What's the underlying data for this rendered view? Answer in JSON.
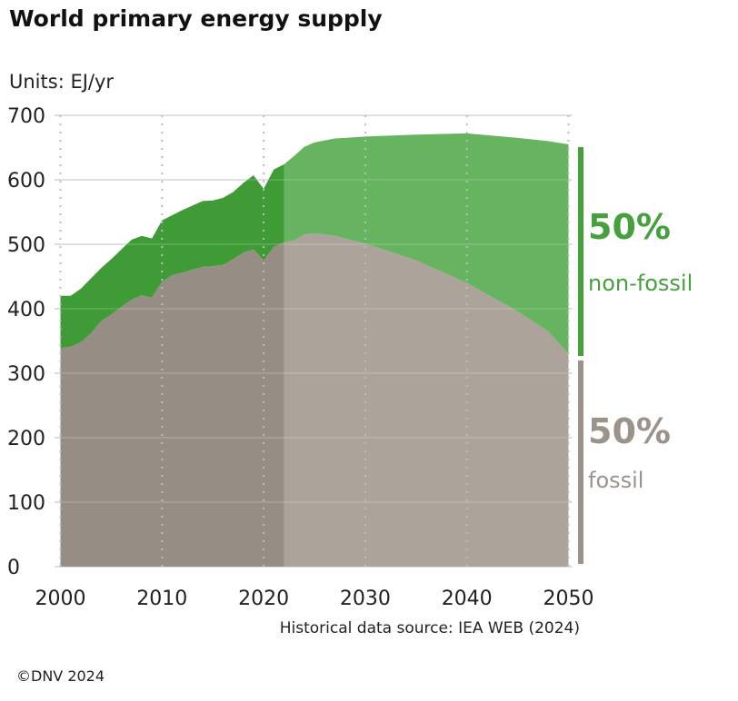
{
  "chart_data": {
    "type": "area",
    "title": "World primary energy supply",
    "units_label": "Units: EJ/yr",
    "ylim": [
      0,
      700
    ],
    "yticks": [
      0,
      100,
      200,
      300,
      400,
      500,
      600,
      700
    ],
    "xlim": [
      2000,
      2050
    ],
    "xticks": [
      2000,
      2010,
      2020,
      2030,
      2040,
      2050
    ],
    "historical_end": 2022,
    "grid": true,
    "x": [
      2000,
      2001,
      2002,
      2003,
      2004,
      2005,
      2006,
      2007,
      2008,
      2009,
      2010,
      2011,
      2012,
      2013,
      2014,
      2015,
      2016,
      2017,
      2018,
      2019,
      2020,
      2021,
      2022,
      2023,
      2024,
      2025,
      2027,
      2030,
      2035,
      2040,
      2045,
      2048,
      2050
    ],
    "series": [
      {
        "name": "fossil",
        "values": [
          339,
          341,
          348,
          362,
          381,
          391,
          403,
          414,
          421,
          417,
          442,
          452,
          456,
          461,
          465,
          466,
          468,
          477,
          487,
          492,
          475,
          496,
          503,
          506,
          515,
          517,
          513,
          501,
          475,
          440,
          396,
          365,
          330
        ]
      },
      {
        "name": "total",
        "values": [
          420,
          420,
          431,
          447,
          463,
          477,
          492,
          507,
          513,
          509,
          537,
          545,
          553,
          560,
          567,
          568,
          572,
          581,
          595,
          607,
          586,
          616,
          624,
          637,
          651,
          658,
          664,
          667,
          670,
          672,
          665,
          660,
          655
        ]
      }
    ],
    "annotations": [
      {
        "value": "50%",
        "label": "non-fossil"
      },
      {
        "value": "50%",
        "label": "fossil"
      }
    ],
    "source": "Historical data source: IEA WEB (2024)",
    "copyright": "©DNV 2024",
    "colors": {
      "hist_nonfossil": "#3f9b35",
      "hist_fossil": "#968d85",
      "proj_nonfossil": "#66b360",
      "proj_fossil": "#aca49a",
      "label_green": "#46a03d",
      "label_gray": "#9b928a"
    }
  }
}
